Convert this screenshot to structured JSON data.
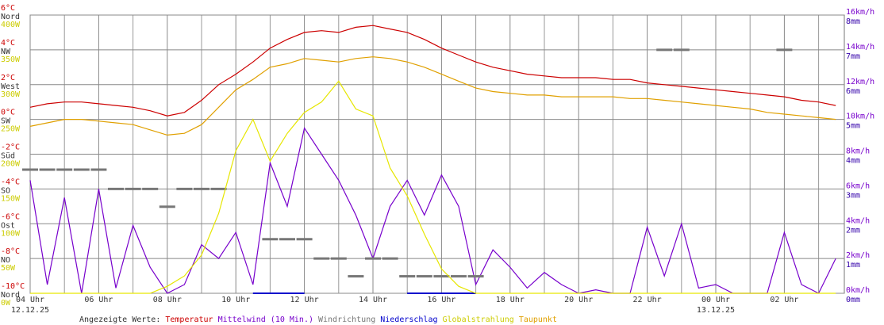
{
  "chart_data": {
    "type": "line",
    "legend_title": "Angezeigte Werte:",
    "grid": true,
    "xlim": [
      4,
      27.75
    ],
    "xticks": [
      {
        "value": 4,
        "label": "04 Uhr"
      },
      {
        "value": 6,
        "label": "06 Uhr"
      },
      {
        "value": 8,
        "label": "08 Uhr"
      },
      {
        "value": 10,
        "label": "10 Uhr"
      },
      {
        "value": 12,
        "label": "12 Uhr"
      },
      {
        "value": 14,
        "label": "14 Uhr"
      },
      {
        "value": 16,
        "label": "16 Uhr"
      },
      {
        "value": 18,
        "label": "18 Uhr"
      },
      {
        "value": 20,
        "label": "20 Uhr"
      },
      {
        "value": 22,
        "label": "22 Uhr"
      },
      {
        "value": 24,
        "label": "00 Uhr"
      },
      {
        "value": 26,
        "label": "02 Uhr"
      }
    ],
    "x_minor_ticks": [
      5,
      7,
      9,
      11,
      13,
      15,
      17,
      19,
      21,
      23,
      25,
      27
    ],
    "date_labels": [
      {
        "value": 4,
        "label": "12.12.25"
      },
      {
        "value": 24,
        "label": "13.12.25"
      }
    ],
    "ylim": [
      -10,
      6
    ],
    "yticks": [
      {
        "value": 6,
        "label": "6°C"
      },
      {
        "value": 4,
        "label": "4°C"
      },
      {
        "value": 2,
        "label": "2°C"
      },
      {
        "value": 0,
        "label": "0°C"
      },
      {
        "value": -2,
        "label": "-2°C"
      },
      {
        "value": -4,
        "label": "-4°C"
      },
      {
        "value": -6,
        "label": "-6°C"
      },
      {
        "value": -8,
        "label": "-8°C"
      },
      {
        "value": -10,
        "label": "-10°C"
      }
    ],
    "y2lim": [
      0,
      16
    ],
    "y2ticks": [
      {
        "value": 16,
        "label": "16km/h"
      },
      {
        "value": 14,
        "label": "14km/h"
      },
      {
        "value": 12,
        "label": "12km/h"
      },
      {
        "value": 10,
        "label": "10km/h"
      },
      {
        "value": 8,
        "label": "8km/h"
      },
      {
        "value": 6,
        "label": "6km/h"
      },
      {
        "value": 4,
        "label": "4km/h"
      },
      {
        "value": 2,
        "label": "2km/h"
      },
      {
        "value": 0,
        "label": "0km/h"
      }
    ],
    "direction_lim": [
      0,
      360
    ],
    "direction_ticks": [
      {
        "value": 360,
        "label": "Nord"
      },
      {
        "value": 315,
        "label": "NW"
      },
      {
        "value": 270,
        "label": "West"
      },
      {
        "value": 225,
        "label": "SW"
      },
      {
        "value": 180,
        "label": "Süd"
      },
      {
        "value": 135,
        "label": "SO"
      },
      {
        "value": 90,
        "label": "Ost"
      },
      {
        "value": 45,
        "label": "NO"
      },
      {
        "value": 0,
        "label": "Nord"
      }
    ],
    "radiation_lim": [
      0,
      400
    ],
    "radiation_ticks": [
      {
        "value": 400,
        "label": "400W"
      },
      {
        "value": 350,
        "label": "350W"
      },
      {
        "value": 300,
        "label": "300W"
      },
      {
        "value": 250,
        "label": "250W"
      },
      {
        "value": 200,
        "label": "200W"
      },
      {
        "value": 150,
        "label": "150W"
      },
      {
        "value": 100,
        "label": "100W"
      },
      {
        "value": 50,
        "label": "50W"
      },
      {
        "value": 0,
        "label": "0W"
      }
    ],
    "rain_lim": [
      0,
      8
    ],
    "rain_ticks": [
      {
        "value": 8,
        "label": "8mm"
      },
      {
        "value": 7,
        "label": "7mm"
      },
      {
        "value": 6,
        "label": "6mm"
      },
      {
        "value": 5,
        "label": "5mm"
      },
      {
        "value": 4,
        "label": "4mm"
      },
      {
        "value": 3,
        "label": "3mm"
      },
      {
        "value": 2,
        "label": "2mm"
      },
      {
        "value": 1,
        "label": "1mm"
      },
      {
        "value": 0,
        "label": "0mm"
      }
    ],
    "x": [
      4,
      4.5,
      5,
      5.5,
      6,
      6.5,
      7,
      7.5,
      8,
      8.5,
      9,
      9.5,
      10,
      10.5,
      11,
      11.5,
      12,
      12.5,
      13,
      13.5,
      14,
      14.5,
      15,
      15.5,
      16,
      16.5,
      17,
      17.5,
      18,
      18.5,
      19,
      19.5,
      20,
      20.5,
      21,
      21.5,
      22,
      22.5,
      23,
      23.5,
      24,
      24.5,
      25,
      25.5,
      26,
      26.5,
      27,
      27.5
    ],
    "series": [
      {
        "name": "Temperatur",
        "color": "#cc0000",
        "axis": "y",
        "style": "line",
        "values": [
          0.7,
          0.9,
          1.0,
          1.0,
          0.9,
          0.8,
          0.7,
          0.5,
          0.2,
          0.4,
          1.1,
          2.0,
          2.6,
          3.3,
          4.1,
          4.6,
          5.0,
          5.1,
          5.0,
          5.3,
          5.4,
          5.2,
          5.0,
          4.6,
          4.1,
          3.7,
          3.3,
          3.0,
          2.8,
          2.6,
          2.5,
          2.4,
          2.4,
          2.4,
          2.3,
          2.3,
          2.1,
          2.0,
          1.9,
          1.8,
          1.7,
          1.6,
          1.5,
          1.4,
          1.3,
          1.1,
          1.0,
          0.8
        ]
      },
      {
        "name": "Mittelwind (10 Min.)",
        "color": "#7700cc",
        "axis": "y2",
        "style": "line",
        "values": [
          6.5,
          0.5,
          5.5,
          0,
          6.0,
          0.3,
          3.9,
          1.5,
          0,
          0.5,
          2.8,
          2.0,
          3.5,
          0.5,
          7.5,
          5.0,
          9.5,
          8.0,
          6.5,
          4.5,
          2.0,
          5.0,
          6.5,
          4.5,
          6.8,
          5.0,
          0.5,
          2.5,
          1.5,
          0.3,
          1.2,
          0.5,
          0,
          0.2,
          0,
          0,
          3.8,
          1.0,
          4.0,
          0.3,
          0.5,
          0,
          0,
          0,
          3.5,
          0.5,
          0,
          2.0
        ]
      },
      {
        "name": "Windrichtung",
        "color": "#777777",
        "axis": "direction",
        "style": "dash",
        "values": [
          160,
          160,
          160,
          160,
          160,
          135,
          135,
          135,
          112,
          135,
          135,
          135,
          null,
          null,
          70,
          70,
          70,
          45,
          45,
          22,
          45,
          45,
          22,
          22,
          22,
          22,
          22,
          null,
          null,
          null,
          null,
          null,
          null,
          null,
          null,
          null,
          null,
          315,
          315,
          null,
          null,
          null,
          null,
          null,
          315,
          null,
          null,
          null
        ]
      },
      {
        "name": "Niederschlag",
        "color": "#0000cc",
        "axis": "rain",
        "style": "line",
        "values": [
          null,
          null,
          null,
          null,
          null,
          null,
          null,
          null,
          null,
          null,
          null,
          null,
          null,
          0,
          0,
          0,
          0,
          null,
          null,
          null,
          null,
          null,
          0,
          0,
          0,
          0,
          0,
          null,
          null,
          null,
          null,
          null,
          null,
          null,
          null,
          null,
          null,
          null,
          null,
          null,
          null,
          null,
          null,
          null,
          null,
          null,
          null,
          null
        ]
      },
      {
        "name": "Globalstrahlung",
        "color": "#e6e600",
        "axis": "radiation",
        "style": "line",
        "values": [
          0,
          0,
          0,
          0,
          0,
          0,
          0,
          0,
          10,
          25,
          55,
          115,
          205,
          250,
          190,
          230,
          260,
          275,
          305,
          265,
          255,
          180,
          140,
          85,
          35,
          10,
          0,
          0,
          0,
          0,
          0,
          0,
          0,
          0,
          0,
          0,
          0,
          0,
          0,
          0,
          0,
          0,
          0,
          0,
          0,
          0,
          0,
          0
        ]
      },
      {
        "name": "Taupunkt",
        "color": "#e0a000",
        "axis": "y",
        "style": "line",
        "values": [
          -0.4,
          -0.2,
          0,
          0,
          -0.1,
          -0.2,
          -0.3,
          -0.6,
          -0.9,
          -0.8,
          -0.3,
          0.7,
          1.7,
          2.3,
          3.0,
          3.2,
          3.5,
          3.4,
          3.3,
          3.5,
          3.6,
          3.5,
          3.3,
          3.0,
          2.6,
          2.2,
          1.8,
          1.6,
          1.5,
          1.4,
          1.4,
          1.3,
          1.3,
          1.3,
          1.3,
          1.2,
          1.2,
          1.1,
          1.0,
          0.9,
          0.8,
          0.7,
          0.6,
          0.4,
          0.3,
          0.2,
          0.1,
          0.0
        ]
      }
    ]
  }
}
